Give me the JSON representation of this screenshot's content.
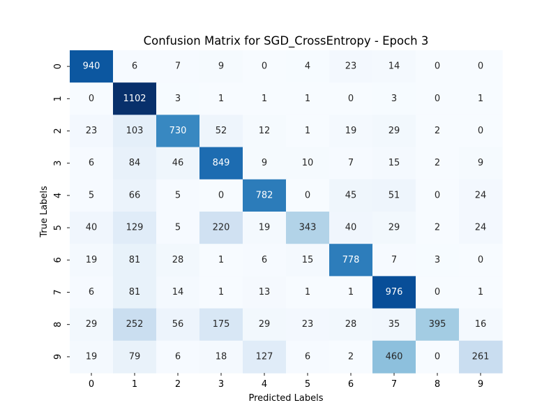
{
  "chart_data": {
    "type": "heatmap",
    "title": "Confusion Matrix for SGD_CrossEntropy - Epoch 3",
    "xlabel": "Predicted Labels",
    "ylabel": "True Labels",
    "x_categories": [
      "0",
      "1",
      "2",
      "3",
      "4",
      "5",
      "6",
      "7",
      "8",
      "9"
    ],
    "y_categories": [
      "0",
      "1",
      "2",
      "3",
      "4",
      "5",
      "6",
      "7",
      "8",
      "9"
    ],
    "colormap": "Blues",
    "vmin": 0,
    "vmax": 1102,
    "colorbar": false,
    "matrix": [
      [
        940,
        6,
        7,
        9,
        0,
        4,
        23,
        14,
        0,
        0
      ],
      [
        0,
        1102,
        3,
        1,
        1,
        1,
        0,
        3,
        0,
        1
      ],
      [
        23,
        103,
        730,
        52,
        12,
        1,
        19,
        29,
        2,
        0
      ],
      [
        6,
        84,
        46,
        849,
        9,
        10,
        7,
        15,
        2,
        9
      ],
      [
        5,
        66,
        5,
        0,
        782,
        0,
        45,
        51,
        0,
        24
      ],
      [
        40,
        129,
        5,
        220,
        19,
        343,
        40,
        29,
        2,
        24
      ],
      [
        19,
        81,
        28,
        1,
        6,
        15,
        778,
        7,
        3,
        0
      ],
      [
        6,
        81,
        14,
        1,
        13,
        1,
        1,
        976,
        0,
        1
      ],
      [
        29,
        252,
        56,
        175,
        29,
        23,
        28,
        35,
        395,
        16
      ],
      [
        19,
        79,
        6,
        18,
        127,
        6,
        2,
        460,
        0,
        261
      ]
    ]
  }
}
